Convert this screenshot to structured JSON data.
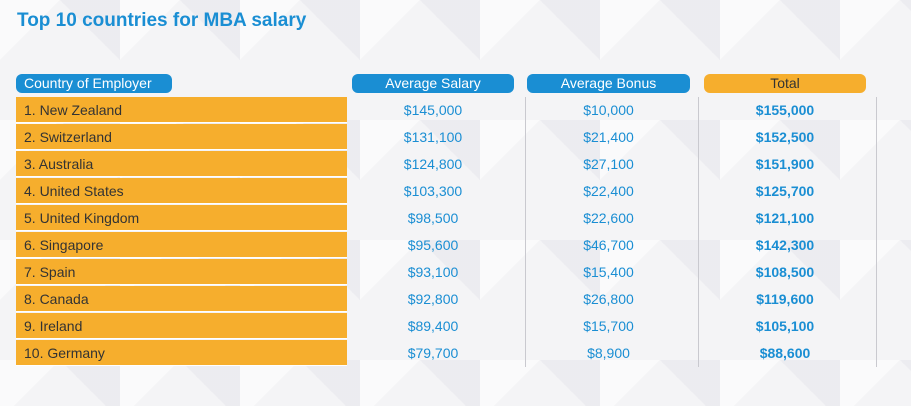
{
  "title": "Top 10 countries for MBA salary",
  "colors": {
    "blue": "#1a8ed3",
    "orange": "#f6ae2d"
  },
  "chart_data": {
    "type": "table",
    "title": "Top 10 countries for MBA salary",
    "columns": [
      "Country of Employer",
      "Average Salary",
      "Average Bonus",
      "Total"
    ],
    "rows": [
      {
        "country": "1. New Zealand",
        "salary": "$145,000",
        "bonus": "$10,000",
        "total": "$155,000"
      },
      {
        "country": "2. Switzerland",
        "salary": "$131,100",
        "bonus": "$21,400",
        "total": "$152,500"
      },
      {
        "country": "3. Australia",
        "salary": "$124,800",
        "bonus": "$27,100",
        "total": "$151,900"
      },
      {
        "country": "4. United States",
        "salary": "$103,300",
        "bonus": "$22,400",
        "total": "$125,700"
      },
      {
        "country": "5. United Kingdom",
        "salary": "$98,500",
        "bonus": "$22,600",
        "total": "$121,100"
      },
      {
        "country": "6. Singapore",
        "salary": "$95,600",
        "bonus": "$46,700",
        "total": "$142,300"
      },
      {
        "country": "7. Spain",
        "salary": "$93,100",
        "bonus": "$15,400",
        "total": "$108,500"
      },
      {
        "country": "8. Canada",
        "salary": "$92,800",
        "bonus": "$26,800",
        "total": "$119,600"
      },
      {
        "country": "9. Ireland",
        "salary": "$89,400",
        "bonus": "$15,700",
        "total": "$105,100"
      },
      {
        "country": "10. Germany",
        "salary": "$79,700",
        "bonus": "$8,900",
        "total": "$88,600"
      }
    ]
  }
}
